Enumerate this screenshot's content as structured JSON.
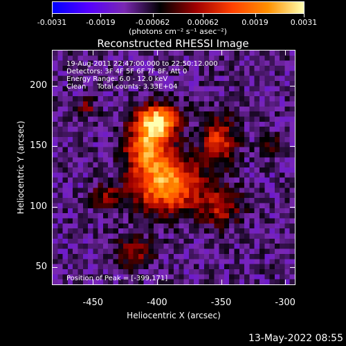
{
  "colorbar": {
    "tick_labels": [
      "-0.0031",
      "-0.0019",
      "-0.00062",
      "0.00062",
      "0.0019",
      "0.0031"
    ],
    "tick_values": [
      -0.0031,
      -0.0019,
      -0.00062,
      0.00062,
      0.0019,
      0.0031
    ],
    "units": "(photons cm⁻² s⁻¹ asec⁻²)",
    "colors": [
      "#0000ff",
      "#5500ff",
      "#7a28b2",
      "#000000",
      "#a00000",
      "#ff4000",
      "#ff9000",
      "#ffffb0"
    ]
  },
  "chart_data": {
    "type": "heatmap",
    "title": "Reconstructed RHESSI Image",
    "xlabel": "Heliocentric X (arcsec)",
    "ylabel": "Heliocentric Y (arcsec)",
    "xlim": [
      -482,
      -292
    ],
    "ylim": [
      35,
      230
    ],
    "x_ticks": [
      -450,
      -400,
      -350,
      -300
    ],
    "x_tick_labels": [
      "-450",
      "-400",
      "-350",
      "-300"
    ],
    "y_ticks": [
      50,
      100,
      150,
      200
    ],
    "y_tick_labels": [
      "50",
      "100",
      "150",
      "200"
    ],
    "value_range": [
      -0.0031,
      0.0031
    ],
    "peak_position": [
      -399,
      171
    ],
    "annotations": [
      "19-Aug-2011 22:47:00.000 to 22:50:12.000",
      "Detectors: 3F 4F 5F 6F 7F 8F, Att 0",
      "Energy Range: 6.0 - 12.0 keV",
      "Clean     Total counts: 3.33E+04"
    ],
    "peak_label": "Position of Peak = [-399,171]"
  },
  "timestamp": "13-May-2022 08:55"
}
